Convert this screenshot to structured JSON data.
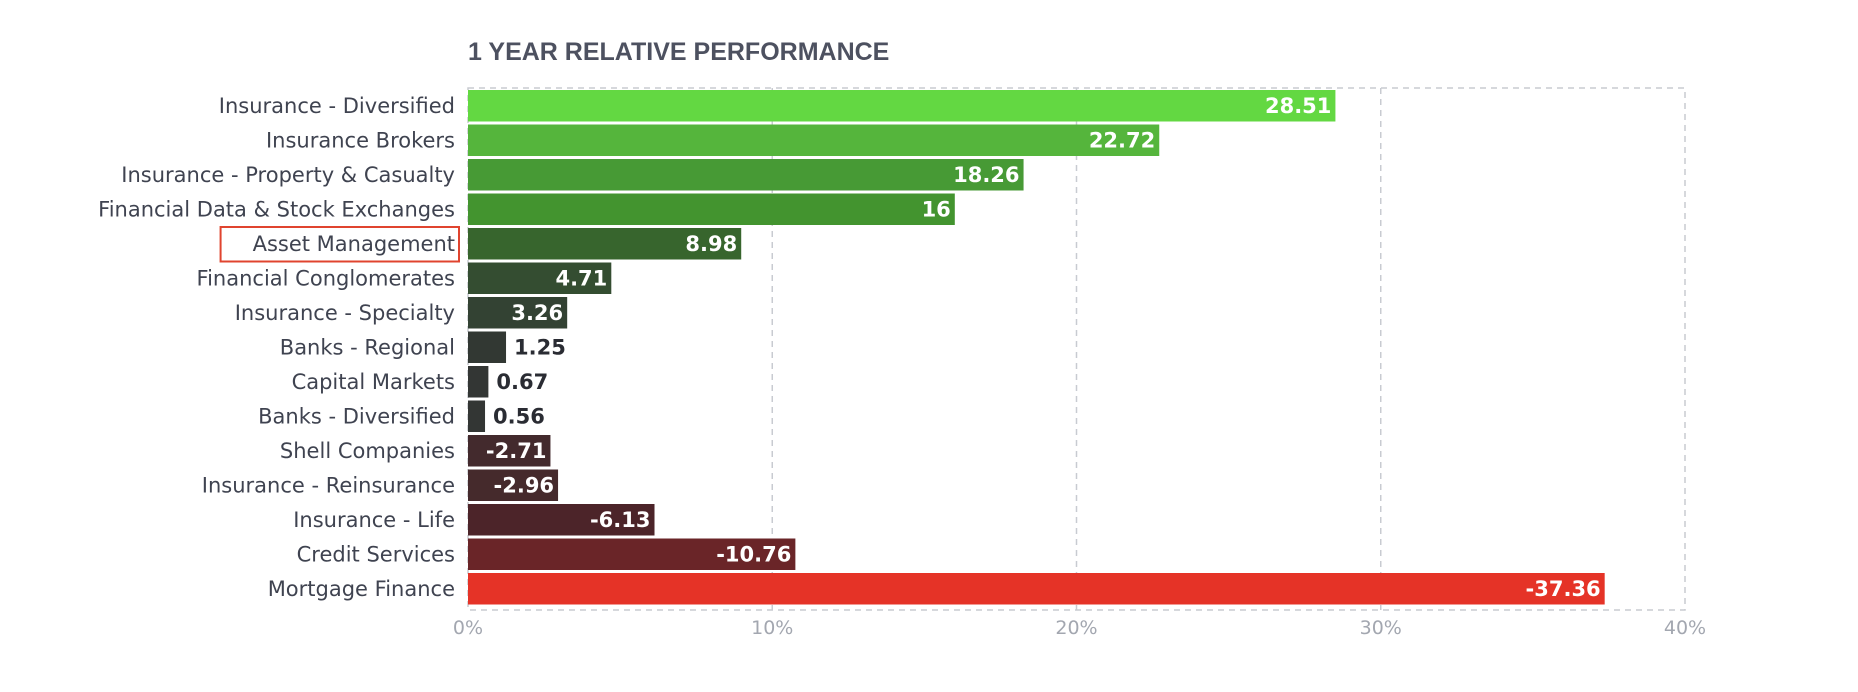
{
  "chart_data": {
    "type": "bar",
    "orientation": "horizontal",
    "title": "1 YEAR RELATIVE PERFORMANCE",
    "categories": [
      "Insurance - Diversified",
      "Insurance Brokers",
      "Insurance - Property & Casualty",
      "Financial Data & Stock Exchanges",
      "Asset Management",
      "Financial Conglomerates",
      "Insurance - Specialty",
      "Banks - Regional",
      "Capital Markets",
      "Banks - Diversified",
      "Shell Companies",
      "Insurance - Reinsurance",
      "Insurance - Life",
      "Credit Services",
      "Mortgage Finance"
    ],
    "values": [
      28.51,
      22.72,
      18.26,
      16,
      8.98,
      4.71,
      3.26,
      1.25,
      0.67,
      0.56,
      -2.71,
      -2.96,
      -6.13,
      -10.76,
      -37.36
    ],
    "value_labels": [
      "28.51",
      "22.72",
      "18.26",
      "16",
      "8.98",
      "4.71",
      "3.26",
      "1.25",
      "0.67",
      "0.56",
      "-2.71",
      "-2.96",
      "-6.13",
      "-10.76",
      "-37.36"
    ],
    "bar_colors": [
      "#63d842",
      "#55b53c",
      "#479a35",
      "#43942f",
      "#37652d",
      "#344d31",
      "#334233",
      "#323833",
      "#333634",
      "#333634",
      "#432a2d",
      "#452a2c",
      "#4c2429",
      "#6a2528",
      "#e53327"
    ],
    "x_ticks": [
      "0%",
      "10%",
      "20%",
      "30%",
      "40%"
    ],
    "x_tick_values": [
      0,
      10,
      20,
      30,
      40
    ],
    "xlim": [
      0,
      40
    ],
    "bar_length_uses_absolute_value": true,
    "highlighted_category": "Asset Management",
    "highlight_color": "#e0442f",
    "grid": true,
    "xlabel": "",
    "ylabel": ""
  }
}
